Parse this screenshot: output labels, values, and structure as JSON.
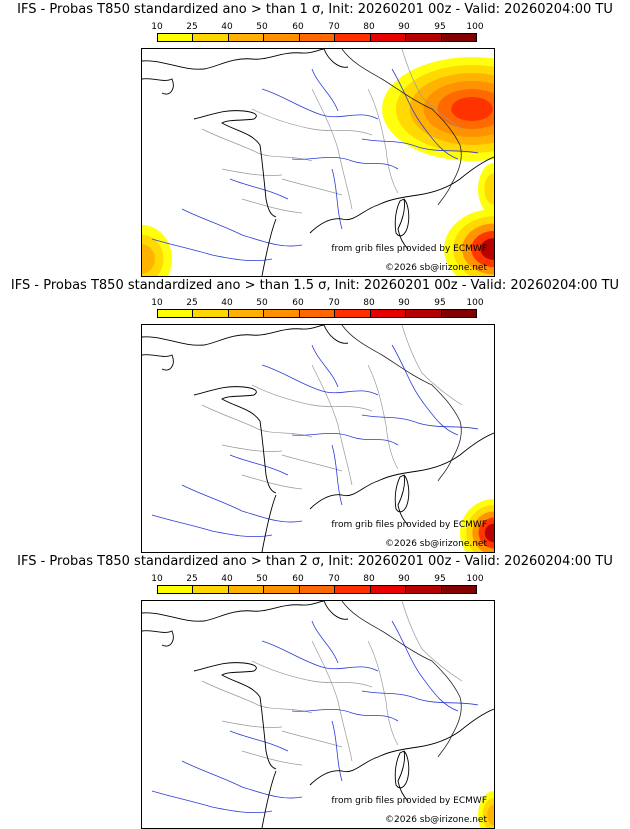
{
  "legend": {
    "ticks": [
      "10",
      "25",
      "40",
      "50",
      "60",
      "70",
      "80",
      "90",
      "95",
      "100"
    ],
    "colors": [
      "#ffff00",
      "#ffd700",
      "#ffb000",
      "#ff9000",
      "#ff6800",
      "#ff3000",
      "#e60000",
      "#b40000",
      "#820000",
      "#550000"
    ]
  },
  "panels": [
    {
      "title": "IFS - Probas T850  standardized ano > than 1 σ, Init: 20260201 00z - Valid: 20260204:00 TU",
      "source": "from grib files provided by ECMWF",
      "copyright": "©2026 sb@irizone.net",
      "threshold_sigma": 1
    },
    {
      "title": "IFS - Probas T850  standardized ano > than 1.5 σ, Init: 20260201 00z - Valid: 20260204:00 TU",
      "source": "from grib files provided by ECMWF",
      "copyright": "©2026 sb@irizone.net",
      "threshold_sigma": 1.5
    },
    {
      "title": "IFS - Probas T850  standardized ano > than 2 σ, Init: 20260201 00z - Valid: 20260204:00 TU",
      "source": "from grib files provided by ECMWF",
      "copyright": "©2026 sb@irizone.net",
      "threshold_sigma": 2
    }
  ]
}
